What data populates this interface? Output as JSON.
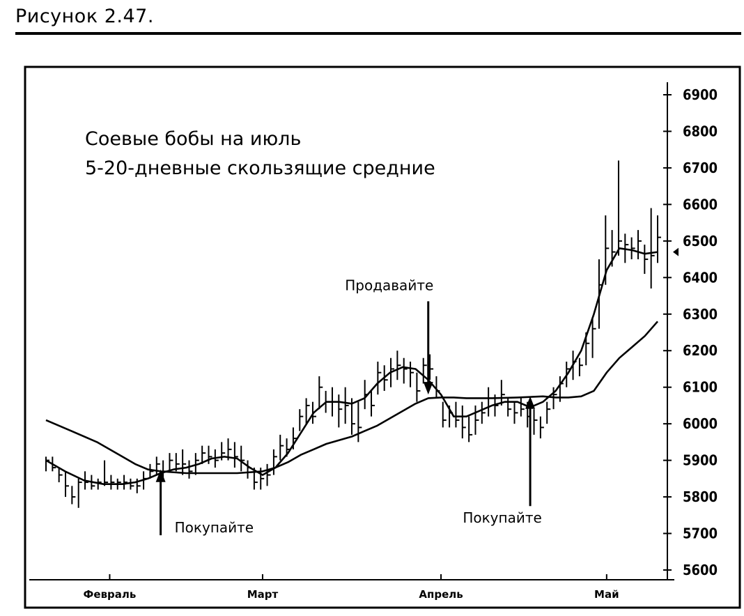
{
  "figure": {
    "caption": "Рисунок 2.47."
  },
  "chart_data": {
    "type": "line",
    "title": "Соевые бобы на июль",
    "subtitle": "5-20-дневные скользящие средние",
    "xlabel": "",
    "ylabel": "",
    "ylim": [
      5600,
      6900
    ],
    "x_range": [
      0,
      96
    ],
    "yticks": [
      5600,
      5700,
      5800,
      5900,
      6000,
      6100,
      6200,
      6300,
      6400,
      6500,
      6600,
      6700,
      6800,
      6900
    ],
    "month_ticks": [
      {
        "label": "Февраль",
        "x": 10
      },
      {
        "label": "Март",
        "x": 34
      },
      {
        "label": "Апрель",
        "x": 62
      },
      {
        "label": "Май",
        "x": 88
      }
    ],
    "grid": false,
    "legend": "none",
    "ohlc": [
      [
        5910,
        5870,
        5900
      ],
      [
        5910,
        5870,
        5880
      ],
      [
        5880,
        5840,
        5860
      ],
      [
        5870,
        5800,
        5830
      ],
      [
        5830,
        5780,
        5800
      ],
      [
        5850,
        5770,
        5840
      ],
      [
        5870,
        5820,
        5840
      ],
      [
        5860,
        5820,
        5830
      ],
      [
        5850,
        5820,
        5840
      ],
      [
        5900,
        5830,
        5840
      ],
      [
        5860,
        5820,
        5840
      ],
      [
        5850,
        5820,
        5840
      ],
      [
        5860,
        5820,
        5840
      ],
      [
        5850,
        5820,
        5830
      ],
      [
        5850,
        5810,
        5830
      ],
      [
        5870,
        5820,
        5850
      ],
      [
        5890,
        5850,
        5870
      ],
      [
        5910,
        5860,
        5890
      ],
      [
        5900,
        5850,
        5870
      ],
      [
        5920,
        5870,
        5900
      ],
      [
        5920,
        5870,
        5890
      ],
      [
        5930,
        5860,
        5890
      ],
      [
        5900,
        5850,
        5870
      ],
      [
        5920,
        5860,
        5900
      ],
      [
        5940,
        5890,
        5920
      ],
      [
        5940,
        5890,
        5910
      ],
      [
        5930,
        5880,
        5900
      ],
      [
        5950,
        5900,
        5920
      ],
      [
        5960,
        5900,
        5930
      ],
      [
        5950,
        5880,
        5910
      ],
      [
        5940,
        5870,
        5900
      ],
      [
        5900,
        5850,
        5880
      ],
      [
        5880,
        5820,
        5840
      ],
      [
        5880,
        5820,
        5850
      ],
      [
        5890,
        5830,
        5860
      ],
      [
        5930,
        5860,
        5910
      ],
      [
        5970,
        5900,
        5940
      ],
      [
        5960,
        5910,
        5930
      ],
      [
        5990,
        5930,
        5960
      ],
      [
        6040,
        5980,
        6020
      ],
      [
        6070,
        6000,
        6050
      ],
      [
        6060,
        6000,
        6020
      ],
      [
        6130,
        6040,
        6100
      ],
      [
        6090,
        6030,
        6060
      ],
      [
        6100,
        6020,
        6060
      ],
      [
        6080,
        5990,
        6040
      ],
      [
        6100,
        6000,
        6050
      ],
      [
        6070,
        5970,
        6000
      ],
      [
        6060,
        5950,
        5990
      ],
      [
        6120,
        6040,
        6080
      ],
      [
        6090,
        6020,
        6050
      ],
      [
        6170,
        6080,
        6140
      ],
      [
        6160,
        6090,
        6120
      ],
      [
        6180,
        6100,
        6150
      ],
      [
        6200,
        6120,
        6160
      ],
      [
        6180,
        6110,
        6150
      ],
      [
        6170,
        6100,
        6140
      ],
      [
        6140,
        6060,
        6090
      ],
      [
        6180,
        6110,
        6160
      ],
      [
        6190,
        6120,
        6150
      ],
      [
        6130,
        6070,
        6090
      ],
      [
        6060,
        5990,
        6010
      ],
      [
        6050,
        5990,
        6030
      ],
      [
        6060,
        5990,
        6010
      ],
      [
        6050,
        5960,
        5990
      ],
      [
        6020,
        5950,
        5970
      ],
      [
        6050,
        5970,
        6010
      ],
      [
        6060,
        6000,
        6030
      ],
      [
        6100,
        6020,
        6070
      ],
      [
        6080,
        6020,
        6050
      ],
      [
        6120,
        6050,
        6080
      ],
      [
        6070,
        6020,
        6040
      ],
      [
        6060,
        6000,
        6030
      ],
      [
        6070,
        6020,
        6040
      ],
      [
        6060,
        5990,
        6020
      ],
      [
        6040,
        5970,
        6010
      ],
      [
        6020,
        5960,
        5990
      ],
      [
        6060,
        6000,
        6040
      ],
      [
        6100,
        6040,
        6080
      ],
      [
        6130,
        6060,
        6110
      ],
      [
        6170,
        6100,
        6150
      ],
      [
        6200,
        6120,
        6170
      ],
      [
        6180,
        6130,
        6160
      ],
      [
        6250,
        6160,
        6220
      ],
      [
        6290,
        6180,
        6260
      ],
      [
        6450,
        6260,
        6380
      ],
      [
        6570,
        6380,
        6480
      ],
      [
        6530,
        6430,
        6470
      ],
      [
        6720,
        6460,
        6500
      ],
      [
        6520,
        6440,
        6490
      ],
      [
        6510,
        6450,
        6480
      ],
      [
        6530,
        6450,
        6500
      ],
      [
        6490,
        6410,
        6450
      ],
      [
        6590,
        6370,
        6460
      ],
      [
        6570,
        6440,
        6510
      ]
    ],
    "series": [
      {
        "values": [
          [
            0,
            5900
          ],
          [
            3,
            5870
          ],
          [
            6,
            5845
          ],
          [
            9,
            5835
          ],
          [
            12,
            5835
          ],
          [
            14,
            5840
          ],
          [
            16,
            5850
          ],
          [
            18,
            5865
          ],
          [
            20,
            5875
          ],
          [
            22,
            5880
          ],
          [
            24,
            5890
          ],
          [
            26,
            5905
          ],
          [
            28,
            5910
          ],
          [
            30,
            5905
          ],
          [
            32,
            5880
          ],
          [
            34,
            5860
          ],
          [
            36,
            5880
          ],
          [
            38,
            5920
          ],
          [
            40,
            5975
          ],
          [
            42,
            6030
          ],
          [
            44,
            6060
          ],
          [
            46,
            6060
          ],
          [
            48,
            6055
          ],
          [
            50,
            6070
          ],
          [
            52,
            6110
          ],
          [
            54,
            6140
          ],
          [
            56,
            6155
          ],
          [
            58,
            6150
          ],
          [
            60,
            6120
          ],
          [
            62,
            6080
          ],
          [
            63,
            6050
          ],
          [
            64,
            6020
          ],
          [
            66,
            6020
          ],
          [
            68,
            6035
          ],
          [
            70,
            6050
          ],
          [
            72,
            6060
          ],
          [
            74,
            6060
          ],
          [
            76,
            6045
          ],
          [
            78,
            6060
          ],
          [
            80,
            6090
          ],
          [
            82,
            6140
          ],
          [
            84,
            6200
          ],
          [
            86,
            6300
          ],
          [
            88,
            6420
          ],
          [
            90,
            6480
          ],
          [
            92,
            6475
          ],
          [
            94,
            6465
          ],
          [
            96,
            6470
          ]
        ]
      },
      {
        "values": [
          [
            0,
            6010
          ],
          [
            4,
            5980
          ],
          [
            8,
            5950
          ],
          [
            12,
            5910
          ],
          [
            14,
            5890
          ],
          [
            16,
            5875
          ],
          [
            18,
            5870
          ],
          [
            22,
            5865
          ],
          [
            26,
            5865
          ],
          [
            30,
            5865
          ],
          [
            34,
            5870
          ],
          [
            36,
            5880
          ],
          [
            38,
            5895
          ],
          [
            40,
            5915
          ],
          [
            42,
            5930
          ],
          [
            44,
            5945
          ],
          [
            46,
            5955
          ],
          [
            48,
            5965
          ],
          [
            50,
            5980
          ],
          [
            52,
            5995
          ],
          [
            54,
            6015
          ],
          [
            56,
            6035
          ],
          [
            58,
            6055
          ],
          [
            60,
            6070
          ],
          [
            62,
            6072
          ],
          [
            64,
            6072
          ],
          [
            66,
            6070
          ],
          [
            70,
            6070
          ],
          [
            74,
            6072
          ],
          [
            78,
            6075
          ],
          [
            80,
            6072
          ],
          [
            82,
            6072
          ],
          [
            84,
            6075
          ],
          [
            86,
            6090
          ],
          [
            88,
            6140
          ],
          [
            90,
            6180
          ],
          [
            92,
            6210
          ],
          [
            94,
            6240
          ],
          [
            96,
            6280
          ]
        ]
      }
    ],
    "annotations": [
      {
        "text": "Покупайте",
        "arrow_x": 18,
        "tail_y": 5695,
        "head_y": 5875,
        "direction": "up"
      },
      {
        "text": "Продавайте",
        "arrow_x": 60,
        "tail_y": 6335,
        "head_y": 6080,
        "direction": "down"
      },
      {
        "text": "Покупайте",
        "arrow_x": 76,
        "tail_y": 5775,
        "head_y": 6075,
        "direction": "up"
      }
    ],
    "last_price_marker": 6470
  }
}
